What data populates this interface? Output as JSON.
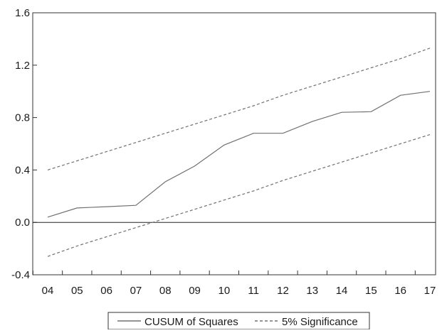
{
  "chart_data": {
    "type": "line",
    "title": "",
    "xlabel": "",
    "ylabel": "",
    "categories": [
      "04",
      "05",
      "06",
      "07",
      "08",
      "09",
      "10",
      "11",
      "12",
      "13",
      "14",
      "15",
      "16",
      "17"
    ],
    "ylim": [
      -0.4,
      1.6
    ],
    "yticks": [
      "1.6",
      "1.2",
      "0.8",
      "0.4",
      "0.0",
      "-0.4"
    ],
    "ytick_values": [
      1.6,
      1.2,
      0.8,
      0.4,
      0.0,
      -0.4
    ],
    "grid": false,
    "zero_line": true,
    "legend_position": "bottom-center",
    "series": [
      {
        "name": "CUSUM of Squares",
        "style": "solid",
        "color": "#707070",
        "values": [
          0.04,
          0.11,
          0.12,
          0.13,
          0.31,
          0.43,
          0.59,
          0.68,
          0.68,
          0.77,
          0.84,
          0.845,
          0.97,
          1.0
        ]
      },
      {
        "name": "5% Significance",
        "style": "dashed",
        "color": "#707070",
        "values": [
          0.4,
          0.47,
          0.54,
          0.61,
          0.68,
          0.75,
          0.82,
          0.89,
          0.97,
          1.04,
          1.11,
          1.18,
          1.25,
          1.33
        ]
      },
      {
        "name": "",
        "style": "dashed",
        "color": "#707070",
        "values": [
          -0.26,
          -0.18,
          -0.11,
          -0.04,
          0.03,
          0.1,
          0.17,
          0.24,
          0.32,
          0.39,
          0.46,
          0.53,
          0.6,
          0.67
        ]
      }
    ],
    "legend": {
      "items": [
        {
          "label": "CUSUM of Squares",
          "style": "solid"
        },
        {
          "label": "5% Significance",
          "style": "dashed"
        }
      ]
    }
  }
}
